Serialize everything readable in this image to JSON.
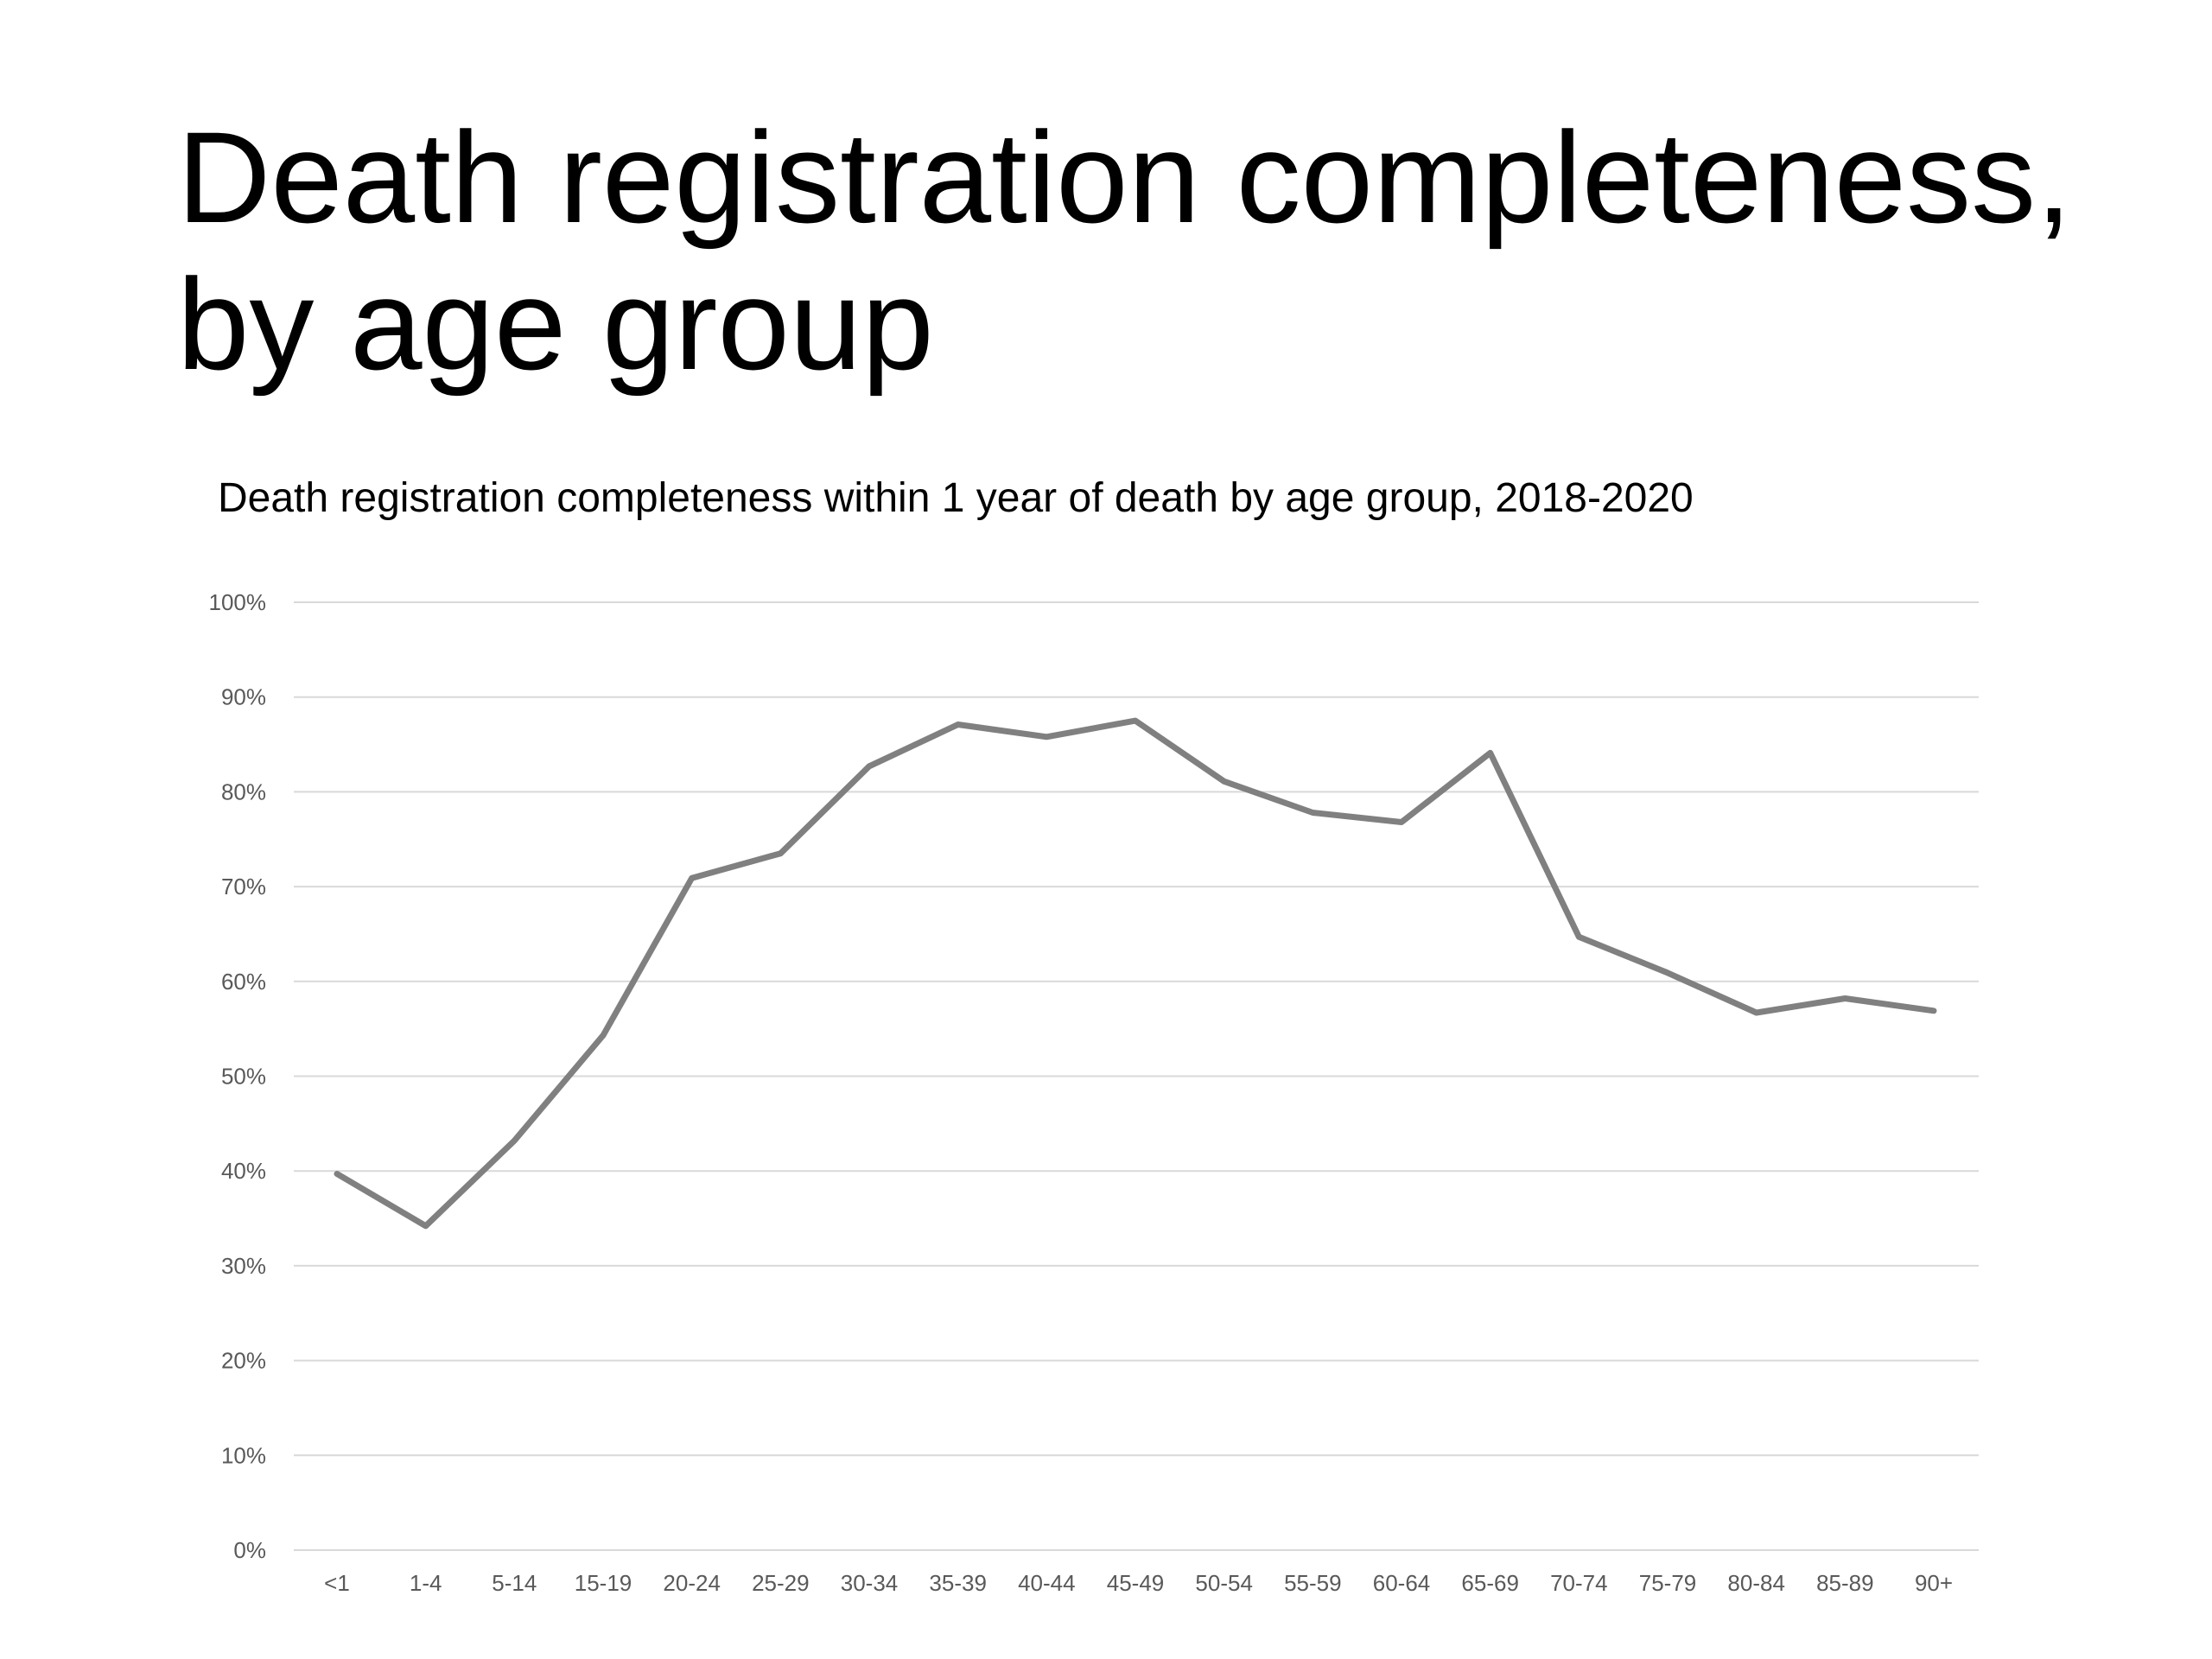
{
  "slide": {
    "title": "Death registration completeness, by age group"
  },
  "chart_data": {
    "type": "line",
    "title": "Death registration completeness within 1 year of death by age group, 2018-2020",
    "xlabel": "",
    "ylabel": "",
    "categories": [
      "<1",
      "1-4",
      "5-14",
      "15-19",
      "20-24",
      "25-29",
      "30-34",
      "35-39",
      "40-44",
      "45-49",
      "50-54",
      "55-59",
      "60-64",
      "65-69",
      "70-74",
      "75-79",
      "80-84",
      "85-89",
      "90+"
    ],
    "series": [
      {
        "color": "#808080",
        "values": [
          39.7,
          34.2,
          43.2,
          54.3,
          70.9,
          73.5,
          82.7,
          87.1,
          85.8,
          87.5,
          81.1,
          77.8,
          76.8,
          84.1,
          64.7,
          60.9,
          56.7,
          58.2,
          56.9
        ]
      }
    ],
    "ylim": [
      0,
      100
    ],
    "yticks": [
      0,
      10,
      20,
      30,
      40,
      50,
      60,
      70,
      80,
      90,
      100
    ],
    "ytick_labels": [
      "0%",
      "10%",
      "20%",
      "30%",
      "40%",
      "50%",
      "60%",
      "70%",
      "80%",
      "90%",
      "100%"
    ],
    "grid": true,
    "legend": "none"
  }
}
